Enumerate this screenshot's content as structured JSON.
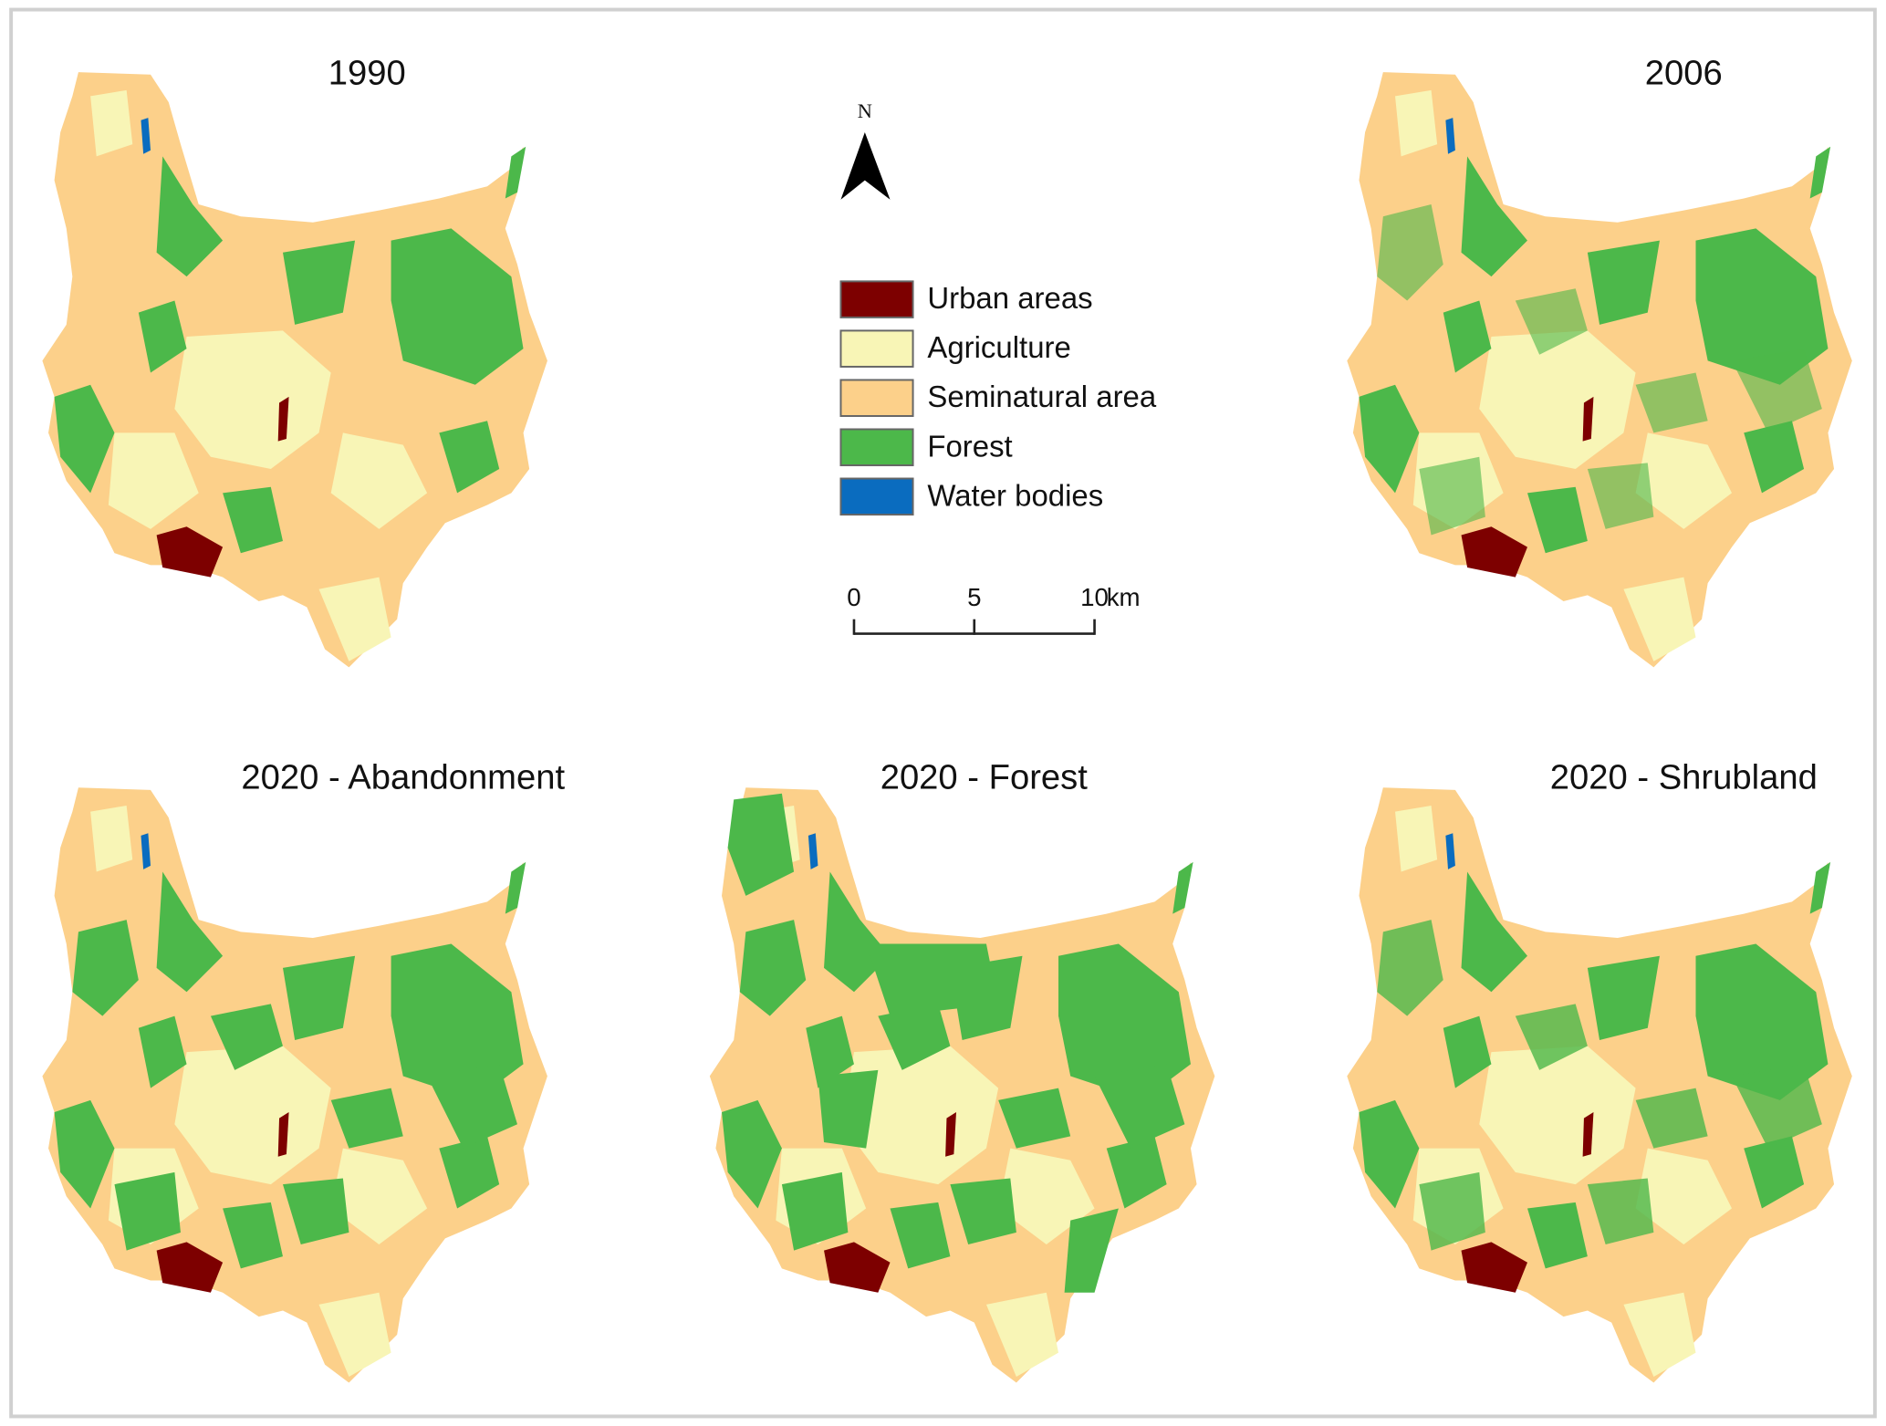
{
  "panels": [
    {
      "title": "1990"
    },
    {
      "title": "2006"
    },
    {
      "title": "2020 - Abandonment"
    },
    {
      "title": "2020 - Forest"
    },
    {
      "title": "2020 - Shrubland"
    }
  ],
  "north_arrow": {
    "label": "N"
  },
  "legend": [
    {
      "label": "Urban areas",
      "color": "#7d0000"
    },
    {
      "label": "Agriculture",
      "color": "#f8f5b6"
    },
    {
      "label": "Seminatural area",
      "color": "#fcd08a"
    },
    {
      "label": "Forest",
      "color": "#4cb84a"
    },
    {
      "label": "Water bodies",
      "color": "#0a6cbf"
    }
  ],
  "scale_bar": {
    "ticks": [
      0,
      5,
      10
    ],
    "unit": "km"
  }
}
